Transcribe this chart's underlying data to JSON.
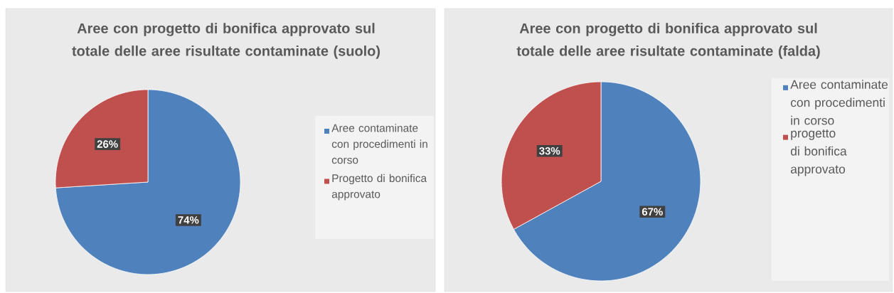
{
  "chart_data": [
    {
      "type": "pie",
      "title": "Aree con progetto di bonifica approvato sul totale delle aree risultate contaminate (suolo)",
      "categories": [
        "Aree contaminate con procedimenti in corso",
        "Progetto di bonifica approvato"
      ],
      "values": [
        74,
        26
      ],
      "colors": [
        "#4f81bd",
        "#c0504d"
      ],
      "value_labels": [
        "74%",
        "26%"
      ],
      "legend": "right"
    },
    {
      "type": "pie",
      "title": "Aree con progetto di bonifica approvato sul totale delle aree risultate contaminate (falda)",
      "categories": [
        "Aree contaminate con procedimenti in corso",
        "progetto di bonifica approvato"
      ],
      "values": [
        67,
        33
      ],
      "colors": [
        "#4f81bd",
        "#c0504d"
      ],
      "value_labels": [
        "67%",
        "33%"
      ],
      "legend": "right"
    }
  ]
}
